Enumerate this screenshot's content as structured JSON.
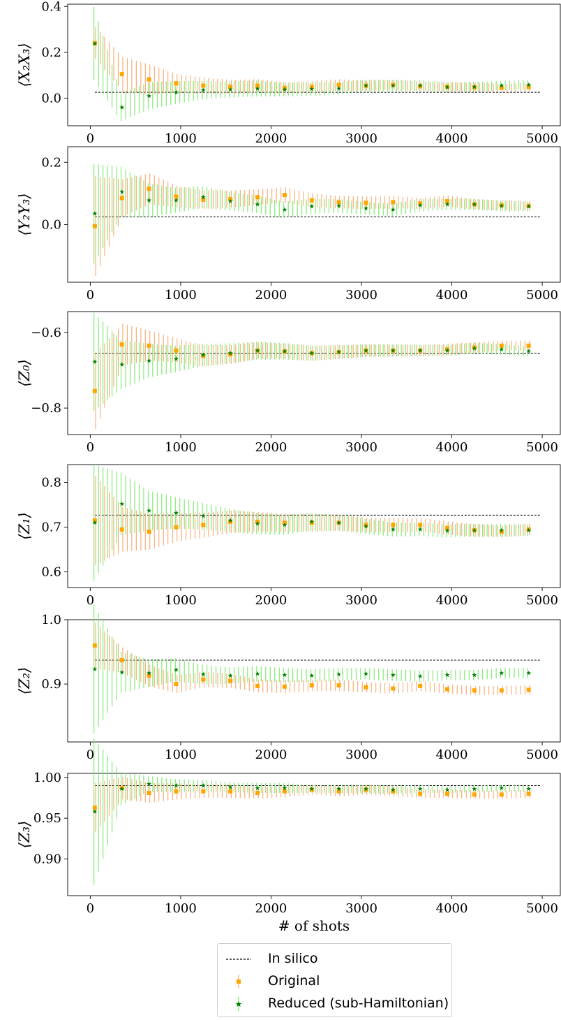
{
  "chart_data": {
    "type": "scatter",
    "x_label": "# of shots",
    "x_ticks": [
      0,
      1000,
      2000,
      3000,
      4000,
      5000
    ],
    "x_range": [
      -250,
      5200
    ],
    "x": [
      50,
      350,
      650,
      950,
      1250,
      1550,
      1850,
      2150,
      2450,
      2750,
      3050,
      3350,
      3650,
      3950,
      4250,
      4550,
      4850
    ],
    "series_names": [
      "In silico",
      "Original",
      "Reduced (sub-Hamiltonian)"
    ],
    "colors": {
      "in_silico": "#000000",
      "original": "#ffa500",
      "original_bar": "#f9a86e",
      "reduced": "#008000",
      "reduced_bar": "#7ae86a"
    },
    "panels": [
      {
        "ylabel": "⟨X₂X₃⟩",
        "ylim": [
          -0.12,
          0.41
        ],
        "yticks": [
          0.0,
          0.2,
          0.4
        ],
        "ytick_labels": [
          "0.0",
          "0.2",
          "0.4"
        ],
        "in_silico": 0.026,
        "original": [
          0.24,
          0.105,
          0.082,
          0.065,
          0.055,
          0.05,
          0.055,
          0.045,
          0.05,
          0.058,
          0.055,
          0.058,
          0.052,
          0.05,
          0.048,
          0.045,
          0.048
        ],
        "original_err": [
          0.07,
          0.075,
          0.065,
          0.04,
          0.035,
          0.03,
          0.028,
          0.025,
          0.025,
          0.025,
          0.022,
          0.022,
          0.02,
          0.02,
          0.02,
          0.018,
          0.018
        ],
        "reduced": [
          0.238,
          -0.04,
          0.01,
          0.025,
          0.035,
          0.038,
          0.042,
          0.038,
          0.04,
          0.042,
          0.055,
          0.055,
          0.055,
          0.048,
          0.05,
          0.055,
          0.058
        ],
        "reduced_err": [
          0.16,
          0.06,
          0.06,
          0.05,
          0.04,
          0.035,
          0.035,
          0.03,
          0.03,
          0.028,
          0.026,
          0.025,
          0.024,
          0.022,
          0.022,
          0.02,
          0.02
        ]
      },
      {
        "ylabel": "⟨Y₂Y₃⟩",
        "ylim": [
          -0.185,
          0.25
        ],
        "yticks": [
          0.0,
          0.2
        ],
        "ytick_labels": [
          "0.0",
          "0.2"
        ],
        "in_silico": 0.025,
        "original": [
          -0.005,
          0.085,
          0.115,
          0.09,
          0.08,
          0.082,
          0.088,
          0.095,
          0.078,
          0.072,
          0.07,
          0.072,
          0.068,
          0.075,
          0.065,
          0.062,
          0.06
        ],
        "original_err": [
          0.16,
          0.06,
          0.05,
          0.035,
          0.03,
          0.028,
          0.025,
          0.025,
          0.022,
          0.02,
          0.02,
          0.02,
          0.018,
          0.018,
          0.016,
          0.016,
          0.015
        ],
        "reduced": [
          0.035,
          0.105,
          0.078,
          0.078,
          0.088,
          0.075,
          0.065,
          0.048,
          0.058,
          0.06,
          0.052,
          0.048,
          0.062,
          0.065,
          0.065,
          0.06,
          0.058
        ],
        "reduced_err": [
          0.16,
          0.08,
          0.055,
          0.04,
          0.035,
          0.03,
          0.028,
          0.026,
          0.024,
          0.022,
          0.02,
          0.02,
          0.02,
          0.018,
          0.018,
          0.017,
          0.016
        ]
      },
      {
        "ylabel": "⟨Z₀⟩",
        "ylim": [
          -0.87,
          -0.545
        ],
        "yticks": [
          -0.8,
          -0.6
        ],
        "ytick_labels": [
          "−0.8",
          "−0.6"
        ],
        "in_silico": -0.655,
        "original": [
          -0.755,
          -0.632,
          -0.635,
          -0.648,
          -0.662,
          -0.658,
          -0.648,
          -0.65,
          -0.655,
          -0.652,
          -0.648,
          -0.648,
          -0.648,
          -0.645,
          -0.64,
          -0.635,
          -0.635
        ],
        "original_err": [
          0.1,
          0.055,
          0.04,
          0.032,
          0.028,
          0.025,
          0.022,
          0.02,
          0.02,
          0.018,
          0.016,
          0.016,
          0.015,
          0.015,
          0.014,
          0.013,
          0.013
        ],
        "reduced": [
          -0.678,
          -0.685,
          -0.675,
          -0.67,
          -0.66,
          -0.655,
          -0.648,
          -0.65,
          -0.655,
          -0.652,
          -0.648,
          -0.648,
          -0.648,
          -0.648,
          -0.642,
          -0.645,
          -0.65
        ],
        "reduced_err": [
          0.13,
          0.065,
          0.045,
          0.035,
          0.03,
          0.026,
          0.024,
          0.022,
          0.02,
          0.018,
          0.017,
          0.016,
          0.015,
          0.015,
          0.014,
          0.014,
          0.013
        ]
      },
      {
        "ylabel": "⟨Z₁⟩",
        "ylim": [
          0.565,
          0.84
        ],
        "yticks": [
          0.6,
          0.7,
          0.8
        ],
        "ytick_labels": [
          "0.6",
          "0.7",
          "0.8"
        ],
        "in_silico": 0.727,
        "original": [
          0.715,
          0.695,
          0.69,
          0.7,
          0.705,
          0.712,
          0.712,
          0.71,
          0.71,
          0.71,
          0.705,
          0.705,
          0.705,
          0.698,
          0.693,
          0.69,
          0.695
        ],
        "original_err": [
          0.1,
          0.05,
          0.04,
          0.032,
          0.028,
          0.025,
          0.022,
          0.02,
          0.02,
          0.018,
          0.016,
          0.016,
          0.015,
          0.015,
          0.014,
          0.013,
          0.013
        ],
        "reduced": [
          0.71,
          0.752,
          0.737,
          0.732,
          0.725,
          0.715,
          0.708,
          0.705,
          0.712,
          0.71,
          0.702,
          0.695,
          0.695,
          0.692,
          0.693,
          0.693,
          0.693
        ],
        "reduced_err": [
          0.13,
          0.07,
          0.045,
          0.035,
          0.03,
          0.026,
          0.024,
          0.022,
          0.02,
          0.018,
          0.017,
          0.016,
          0.015,
          0.015,
          0.014,
          0.014,
          0.013
        ]
      },
      {
        "ylabel": "⟨Z₂⟩",
        "ylim": [
          0.81,
          1.0
        ],
        "yticks": [
          0.9,
          1.0
        ],
        "ytick_labels": [
          "0.9",
          "1.0"
        ],
        "in_silico": 0.937,
        "original": [
          0.96,
          0.937,
          0.913,
          0.9,
          0.907,
          0.905,
          0.897,
          0.896,
          0.898,
          0.898,
          0.895,
          0.893,
          0.897,
          0.892,
          0.89,
          0.89,
          0.891
        ],
        "original_err": [
          0.035,
          0.02,
          0.017,
          0.014,
          0.012,
          0.011,
          0.01,
          0.01,
          0.009,
          0.009,
          0.008,
          0.008,
          0.008,
          0.007,
          0.007,
          0.007,
          0.007
        ],
        "reduced": [
          0.923,
          0.918,
          0.917,
          0.922,
          0.915,
          0.913,
          0.916,
          0.914,
          0.913,
          0.915,
          0.916,
          0.914,
          0.912,
          0.914,
          0.914,
          0.917,
          0.917
        ],
        "reduced_err": [
          0.1,
          0.032,
          0.022,
          0.018,
          0.015,
          0.013,
          0.012,
          0.011,
          0.01,
          0.01,
          0.009,
          0.009,
          0.009,
          0.008,
          0.008,
          0.008,
          0.008
        ]
      },
      {
        "ylabel": "⟨Z₃⟩",
        "ylim": [
          0.855,
          1.005
        ],
        "yticks": [
          0.9,
          0.95,
          1.0
        ],
        "ytick_labels": [
          "0.90",
          "0.95",
          "1.00"
        ],
        "in_silico": 0.99,
        "original": [
          0.963,
          0.987,
          0.981,
          0.983,
          0.983,
          0.983,
          0.981,
          0.983,
          0.985,
          0.983,
          0.985,
          0.983,
          0.98,
          0.98,
          0.979,
          0.979,
          0.98
        ],
        "original_err": [
          0.03,
          0.014,
          0.012,
          0.01,
          0.008,
          0.008,
          0.007,
          0.007,
          0.006,
          0.006,
          0.006,
          0.006,
          0.005,
          0.005,
          0.005,
          0.005,
          0.005
        ],
        "reduced": [
          0.958,
          0.986,
          0.992,
          0.99,
          0.99,
          0.988,
          0.987,
          0.987,
          0.986,
          0.986,
          0.986,
          0.985,
          0.986,
          0.985,
          0.986,
          0.987,
          0.986
        ],
        "reduced_err": [
          0.09,
          0.02,
          0.01,
          0.008,
          0.007,
          0.006,
          0.006,
          0.006,
          0.005,
          0.005,
          0.005,
          0.005,
          0.005,
          0.004,
          0.004,
          0.004,
          0.004
        ]
      }
    ]
  },
  "legend": {
    "in_silico_label": "In silico",
    "original_label": "Original",
    "reduced_label": "Reduced (sub-Hamiltonian)"
  }
}
